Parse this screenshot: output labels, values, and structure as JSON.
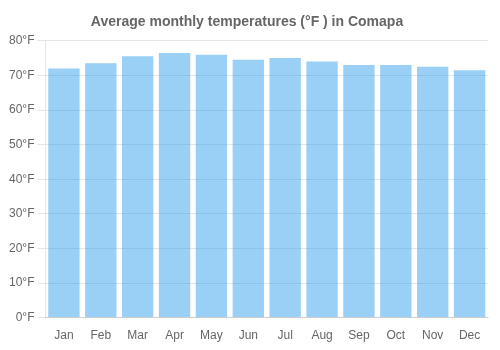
{
  "chart_data": {
    "type": "bar",
    "title": "Average monthly temperatures (°F ) in Comapa",
    "categories": [
      "Jan",
      "Feb",
      "Mar",
      "Apr",
      "May",
      "Jun",
      "Jul",
      "Aug",
      "Sep",
      "Oct",
      "Nov",
      "Dec"
    ],
    "values": [
      72.0,
      73.5,
      75.5,
      76.5,
      76.0,
      74.5,
      75.0,
      74.0,
      73.0,
      73.0,
      72.5,
      71.5
    ],
    "ylim": [
      0,
      80
    ],
    "yticks": [
      {
        "value": 0,
        "label": "0°F"
      },
      {
        "value": 10,
        "label": "10°F"
      },
      {
        "value": 20,
        "label": "20°F"
      },
      {
        "value": 30,
        "label": "30°F"
      },
      {
        "value": 40,
        "label": "40°F"
      },
      {
        "value": 50,
        "label": "50°F"
      },
      {
        "value": 60,
        "label": "60°F"
      },
      {
        "value": 70,
        "label": "70°F"
      },
      {
        "value": 80,
        "label": "80°F"
      }
    ],
    "grid": true
  }
}
